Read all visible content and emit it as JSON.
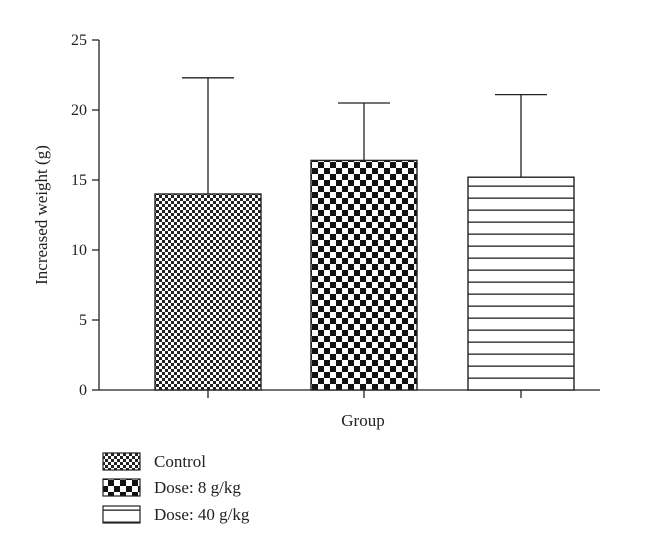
{
  "chart_data": {
    "type": "bar",
    "categories": [
      "Control",
      "Dose: 8 g/kg",
      "Dose: 40 g/kg"
    ],
    "values": [
      14.0,
      16.4,
      15.2
    ],
    "error_upper": [
      22.3,
      20.5,
      21.1
    ],
    "xlabel": "Group",
    "ylabel": "Increased weight (g)",
    "ylim": [
      0,
      25
    ],
    "yticks": [
      "0",
      "5",
      "10",
      "15",
      "20",
      "25"
    ],
    "grid": false,
    "legend_position": "bottom-left",
    "legend": [
      "Control",
      "Dose: 8 g/kg",
      "Dose: 40 g/kg"
    ],
    "patterns": [
      "fine-checker",
      "coarse-checker",
      "horizontal-stripes"
    ],
    "colors": {
      "ink": "#222222",
      "fill": "#ffffff"
    }
  }
}
